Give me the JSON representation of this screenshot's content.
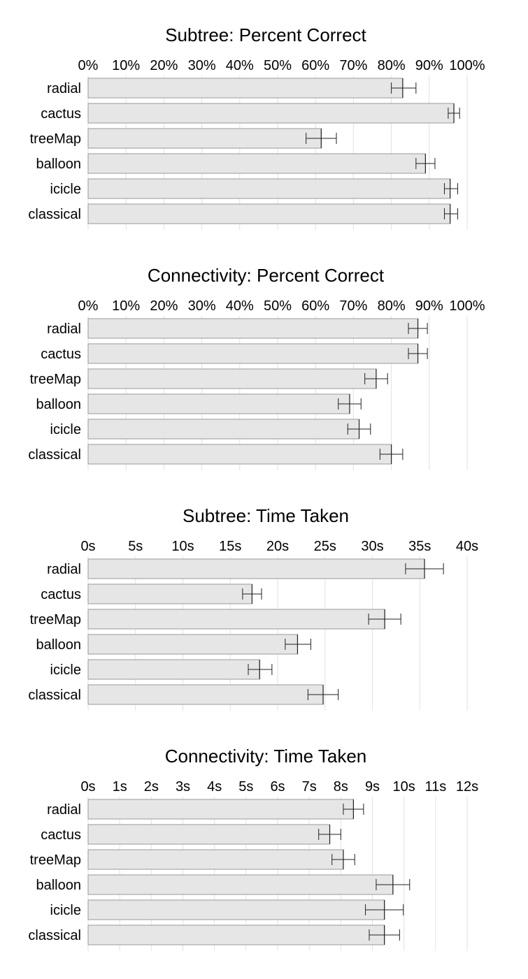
{
  "chart_data": [
    {
      "type": "bar",
      "title": "Subtree: Percent Correct",
      "categories": [
        "radial",
        "cactus",
        "treeMap",
        "balloon",
        "icicle",
        "classical"
      ],
      "values": [
        83,
        96.5,
        61.5,
        89,
        95.5,
        95.5
      ],
      "error_low": [
        80,
        95,
        57.5,
        86.5,
        94,
        94
      ],
      "error_high": [
        86.5,
        98,
        65.5,
        91.5,
        97.5,
        97.5
      ],
      "xlim": [
        0,
        100
      ],
      "ticks": [
        0,
        10,
        20,
        30,
        40,
        50,
        60,
        70,
        80,
        90,
        100
      ],
      "tick_labels": [
        "0%",
        "10%",
        "20%",
        "30%",
        "40%",
        "50%",
        "60%",
        "70%",
        "80%",
        "90%",
        "100%"
      ],
      "grid": true
    },
    {
      "type": "bar",
      "title": "Connectivity: Percent Correct",
      "categories": [
        "radial",
        "cactus",
        "treeMap",
        "balloon",
        "icicle",
        "classical"
      ],
      "values": [
        87,
        87,
        76,
        69,
        71.5,
        80
      ],
      "error_low": [
        84.5,
        84.5,
        73,
        66,
        68.5,
        77
      ],
      "error_high": [
        89.5,
        89.5,
        79,
        72,
        74.5,
        83
      ],
      "xlim": [
        0,
        100
      ],
      "ticks": [
        0,
        10,
        20,
        30,
        40,
        50,
        60,
        70,
        80,
        90,
        100
      ],
      "tick_labels": [
        "0%",
        "10%",
        "20%",
        "30%",
        "40%",
        "50%",
        "60%",
        "70%",
        "80%",
        "90%",
        "100%"
      ],
      "grid": true
    },
    {
      "type": "bar",
      "title": "Subtree: Time Taken",
      "categories": [
        "radial",
        "cactus",
        "treeMap",
        "balloon",
        "icicle",
        "classical"
      ],
      "values": [
        35.5,
        17.3,
        31.3,
        22.1,
        18.1,
        24.8
      ],
      "error_low": [
        33.5,
        16.3,
        29.6,
        20.8,
        16.9,
        23.2
      ],
      "error_high": [
        37.5,
        18.3,
        33.0,
        23.5,
        19.4,
        26.4
      ],
      "xlim": [
        0,
        40
      ],
      "ticks": [
        0,
        5,
        10,
        15,
        20,
        25,
        30,
        35,
        40
      ],
      "tick_labels": [
        "0s",
        "5s",
        "10s",
        "15s",
        "20s",
        "25s",
        "30s",
        "35s",
        "40s"
      ],
      "grid": true
    },
    {
      "type": "bar",
      "title": "Connectivity: Time Taken",
      "categories": [
        "radial",
        "cactus",
        "treeMap",
        "balloon",
        "icicle",
        "classical"
      ],
      "values": [
        8.4,
        7.65,
        8.08,
        9.65,
        9.38,
        9.38
      ],
      "error_low": [
        8.08,
        7.3,
        7.72,
        9.12,
        8.78,
        8.9
      ],
      "error_high": [
        8.72,
        8.0,
        8.44,
        10.18,
        9.98,
        9.86
      ],
      "xlim": [
        0,
        12
      ],
      "ticks": [
        0,
        1,
        2,
        3,
        4,
        5,
        6,
        7,
        8,
        9,
        10,
        11,
        12
      ],
      "tick_labels": [
        "0s",
        "1s",
        "2s",
        "3s",
        "4s",
        "5s",
        "6s",
        "7s",
        "8s",
        "9s",
        "10s",
        "11s",
        "12s"
      ],
      "grid": true
    }
  ],
  "colors": {
    "bar_fill": "#e6e6e6",
    "bar_stroke": "#9a9a9a",
    "grid": "#e2e2e2",
    "error_bar": "#222222",
    "text": "#000000"
  }
}
